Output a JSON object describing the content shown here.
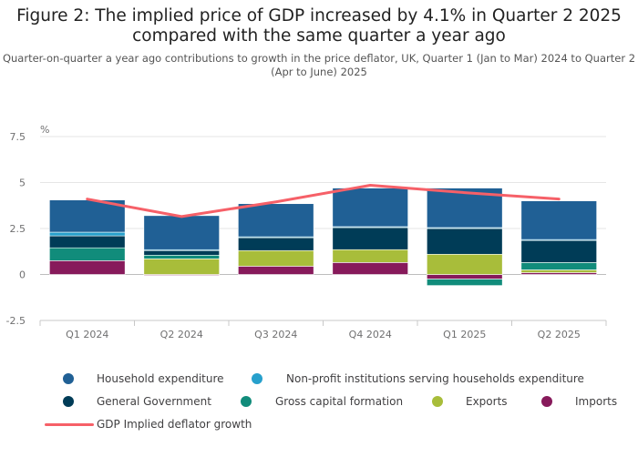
{
  "title": "Figure 2: The implied price of GDP increased by 4.1% in Quarter 2 2025 compared with the same quarter a year ago",
  "subtitle": "Quarter-on-quarter a year ago contributions to growth in the price deflator, UK, Quarter 1 (Jan to Mar) 2024 to Quarter 2 (Apr to June) 2025",
  "chart_data": {
    "type": "bar",
    "stacked": true,
    "title": "Figure 2: The implied price of GDP increased by 4.1% in Quarter 2 2025 compared with the same quarter a year ago",
    "ylabel": "%",
    "ylim": [
      -2.5,
      7.5
    ],
    "yticks": [
      7.5,
      5,
      2.5,
      0,
      -2.5
    ],
    "ytick_labels": [
      "7.5",
      "5",
      "2.5",
      "0",
      "-2.5"
    ],
    "grid": true,
    "legend_position": "bottom",
    "categories": [
      "Q1 2024",
      "Q2 2024",
      "Q3 2024",
      "Q4 2024",
      "Q1 2025",
      "Q2 2025"
    ],
    "series": [
      {
        "name": "Imports",
        "color": "#871a5b",
        "values": [
          0.75,
          -0.05,
          0.45,
          0.65,
          -0.25,
          0.1
        ]
      },
      {
        "name": "Exports",
        "color": "#a8bd3a",
        "values": [
          0.0,
          0.85,
          0.85,
          0.7,
          1.1,
          0.15
        ]
      },
      {
        "name": "Gross capital formation",
        "color": "#118c7b",
        "values": [
          0.7,
          0.2,
          0.0,
          0.0,
          -0.35,
          0.4
        ]
      },
      {
        "name": "General Government",
        "color": "#003c57",
        "values": [
          0.65,
          0.25,
          0.7,
          1.2,
          1.4,
          1.2
        ]
      },
      {
        "name": "Non-profit institutions serving households expenditure",
        "color": "#27a0cc",
        "values": [
          0.2,
          0.05,
          0.05,
          0.05,
          0.05,
          0.05
        ]
      },
      {
        "name": "Household expenditure",
        "color": "#206095",
        "values": [
          1.75,
          1.85,
          1.8,
          2.1,
          2.15,
          2.1
        ]
      }
    ],
    "line_series": {
      "name": "GDP Implied deflator growth",
      "color": "#f66068",
      "values": [
        4.1,
        3.15,
        3.95,
        4.85,
        4.45,
        4.1
      ]
    }
  },
  "legend": [
    {
      "label": "Household expenditure",
      "color": "#206095",
      "kind": "dot"
    },
    {
      "label": "Non-profit institutions serving households expenditure",
      "color": "#27a0cc",
      "kind": "dot"
    },
    {
      "label": "General Government",
      "color": "#003c57",
      "kind": "dot"
    },
    {
      "label": "Gross capital formation",
      "color": "#118c7b",
      "kind": "dot"
    },
    {
      "label": "Exports",
      "color": "#a8bd3a",
      "kind": "dot"
    },
    {
      "label": "Imports",
      "color": "#871a5b",
      "kind": "dot"
    },
    {
      "label": "GDP Implied deflator growth",
      "color": "#f66068",
      "kind": "line"
    }
  ]
}
